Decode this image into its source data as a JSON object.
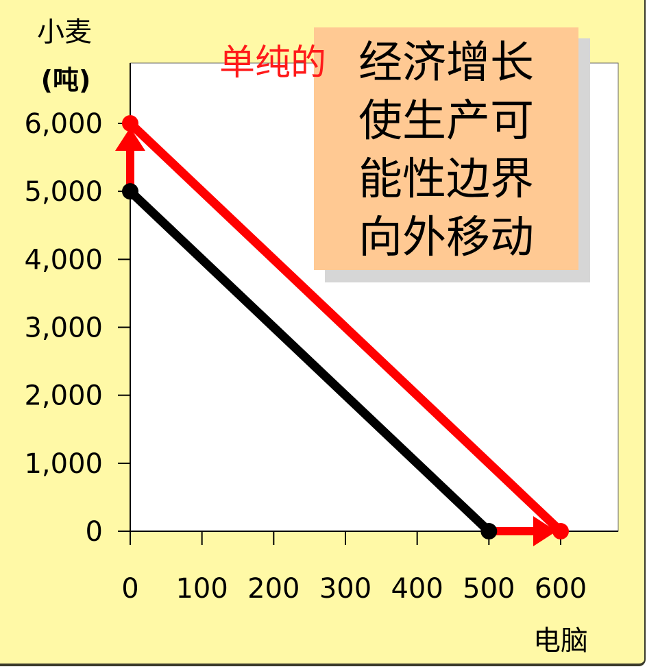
{
  "chart_data": {
    "type": "line",
    "ylabel_line1": "小麦",
    "ylabel_line2": "(吨)",
    "xlabel": "电脑",
    "xlim": [
      0,
      600
    ],
    "ylim": [
      0,
      6000
    ],
    "x_ticks": [
      0,
      100,
      200,
      300,
      400,
      500,
      600
    ],
    "y_ticks": [
      0,
      1000,
      2000,
      3000,
      4000,
      5000,
      6000
    ],
    "x_tick_labels": [
      "0",
      "100",
      "200",
      "300",
      "400",
      "500",
      "600"
    ],
    "y_tick_labels": [
      "0",
      "1,000",
      "2,000",
      "3,000",
      "4,000",
      "5,000",
      "6,000"
    ],
    "series": [
      {
        "color": "#000000",
        "points": [
          [
            0,
            5000
          ],
          [
            500,
            0
          ]
        ]
      },
      {
        "color": "#ff0000",
        "points": [
          [
            0,
            6000
          ],
          [
            600,
            0
          ]
        ]
      }
    ],
    "arrows": [
      {
        "color": "#ff0000",
        "from": [
          0,
          5000
        ],
        "to": [
          0,
          6000
        ]
      },
      {
        "color": "#ff0000",
        "from": [
          500,
          0
        ],
        "to": [
          600,
          0
        ]
      }
    ],
    "grid": false
  },
  "annotation": {
    "prefix": "单纯的",
    "lines": [
      "经济增长",
      "使生产可",
      "能性边界",
      "向外移动"
    ],
    "prefix_color": "#ff1a1a",
    "box_color": "#ffc993"
  },
  "colors": {
    "background": "#fff9a6",
    "plot_area": "#ffffff"
  }
}
